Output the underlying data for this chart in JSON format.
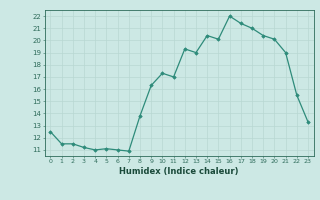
{
  "x": [
    0,
    1,
    2,
    3,
    4,
    5,
    6,
    7,
    8,
    9,
    10,
    11,
    12,
    13,
    14,
    15,
    16,
    17,
    18,
    19,
    20,
    21,
    22,
    23
  ],
  "y": [
    12.5,
    11.5,
    11.5,
    11.2,
    11.0,
    11.1,
    11.0,
    10.9,
    13.8,
    16.3,
    17.3,
    17.0,
    19.3,
    19.0,
    20.4,
    20.1,
    22.0,
    21.4,
    21.0,
    20.4,
    20.1,
    19.0,
    15.5,
    13.3
  ],
  "xlabel": "Humidex (Indice chaleur)",
  "xlim": [
    -0.5,
    23.5
  ],
  "ylim": [
    10.5,
    22.5
  ],
  "yticks": [
    11,
    12,
    13,
    14,
    15,
    16,
    17,
    18,
    19,
    20,
    21,
    22
  ],
  "xticks": [
    0,
    1,
    2,
    3,
    4,
    5,
    6,
    7,
    8,
    9,
    10,
    11,
    12,
    13,
    14,
    15,
    16,
    17,
    18,
    19,
    20,
    21,
    22,
    23
  ],
  "line_color": "#2e8b7a",
  "marker_color": "#2e8b7a",
  "bg_color": "#cce8e4",
  "grid_color": "#b8d8d2",
  "tick_label_color": "#2e6b5a",
  "xlabel_color": "#1a4a3a"
}
